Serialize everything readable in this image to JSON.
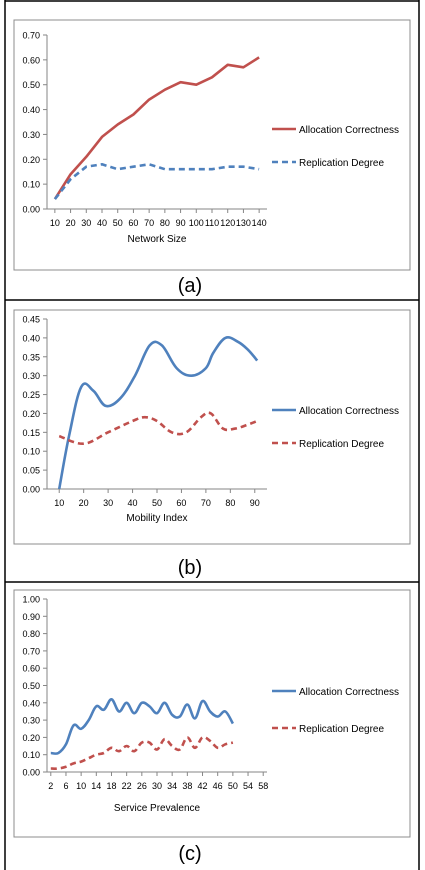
{
  "chart_data": [
    {
      "type": "line",
      "caption": "(a)",
      "xlabel": "Network Size",
      "categories": [
        "10",
        "20",
        "30",
        "40",
        "50",
        "60",
        "70",
        "80",
        "90",
        "100",
        "110",
        "120",
        "130",
        "140"
      ],
      "y_ticks": [
        "0.00",
        "0.10",
        "0.20",
        "0.30",
        "0.40",
        "0.50",
        "0.60",
        "0.70"
      ],
      "ylim": [
        0,
        0.7
      ],
      "smooth": false,
      "grid": false,
      "legend_position": "right",
      "series": [
        {
          "name": "Allocation Correctness",
          "color": "#c0504d",
          "dash": "solid",
          "values": [
            0.04,
            0.14,
            0.21,
            0.29,
            0.34,
            0.38,
            0.44,
            0.48,
            0.51,
            0.5,
            0.53,
            0.58,
            0.57,
            0.61
          ]
        },
        {
          "name": "Replication Degree",
          "color": "#4f81bd",
          "dash": "dashed",
          "values": [
            0.04,
            0.12,
            0.17,
            0.18,
            0.16,
            0.17,
            0.18,
            0.16,
            0.16,
            0.16,
            0.16,
            0.17,
            0.17,
            0.16
          ]
        }
      ]
    },
    {
      "type": "line",
      "caption": "(b)",
      "xlabel": "Mobility Index",
      "categories": [
        "10",
        "20",
        "30",
        "40",
        "50",
        "60",
        "70",
        "80",
        "90"
      ],
      "y_ticks": [
        "0.00",
        "0.05",
        "0.10",
        "0.15",
        "0.20",
        "0.25",
        "0.30",
        "0.35",
        "0.40",
        "0.45"
      ],
      "ylim": [
        0,
        0.45
      ],
      "smooth": true,
      "grid": false,
      "legend_position": "right",
      "series": [
        {
          "name": "Allocation Correctness",
          "color": "#4f81bd",
          "dash": "solid",
          "x": [
            10,
            14,
            19,
            24,
            29,
            35,
            41,
            47,
            52,
            58,
            64,
            70,
            73,
            78,
            83,
            87,
            91
          ],
          "values": [
            0.0,
            0.14,
            0.27,
            0.26,
            0.22,
            0.24,
            0.3,
            0.38,
            0.38,
            0.32,
            0.3,
            0.32,
            0.36,
            0.4,
            0.39,
            0.37,
            0.34
          ]
        },
        {
          "name": "Replication Degree",
          "color": "#c0504d",
          "dash": "dashed",
          "x": [
            10,
            20,
            30,
            40,
            45,
            50,
            56,
            62,
            68,
            72,
            77,
            82,
            87,
            91
          ],
          "values": [
            0.14,
            0.12,
            0.15,
            0.18,
            0.19,
            0.18,
            0.15,
            0.15,
            0.19,
            0.2,
            0.16,
            0.16,
            0.17,
            0.18
          ]
        }
      ]
    },
    {
      "type": "line",
      "caption": "(c)",
      "xlabel": "Service Prevalence",
      "categories": [
        "2",
        "6",
        "10",
        "14",
        "18",
        "22",
        "26",
        "30",
        "34",
        "38",
        "42",
        "46",
        "50",
        "54",
        "58"
      ],
      "y_ticks": [
        "0.00",
        "0.10",
        "0.20",
        "0.30",
        "0.40",
        "0.50",
        "0.60",
        "0.70",
        "0.80",
        "0.90",
        "1.00"
      ],
      "ylim": [
        0,
        1.0
      ],
      "smooth": true,
      "grid": false,
      "legend_position": "right",
      "series": [
        {
          "name": "Allocation Correctness",
          "color": "#4f81bd",
          "dash": "solid",
          "x": [
            2,
            4,
            6,
            8,
            10,
            12,
            14,
            16,
            18,
            20,
            22,
            24,
            26,
            28,
            30,
            32,
            34,
            36,
            38,
            40,
            42,
            44,
            46,
            48,
            50
          ],
          "values": [
            0.11,
            0.11,
            0.16,
            0.27,
            0.25,
            0.3,
            0.38,
            0.36,
            0.42,
            0.35,
            0.4,
            0.34,
            0.4,
            0.38,
            0.34,
            0.4,
            0.33,
            0.32,
            0.39,
            0.31,
            0.41,
            0.35,
            0.32,
            0.35,
            0.28
          ]
        },
        {
          "name": "Replication Degree",
          "color": "#c0504d",
          "dash": "dashed",
          "x": [
            2,
            4,
            6,
            8,
            10,
            12,
            14,
            16,
            18,
            20,
            22,
            24,
            26,
            28,
            30,
            32,
            34,
            36,
            38,
            40,
            42,
            44,
            46,
            48,
            50
          ],
          "values": [
            0.02,
            0.02,
            0.03,
            0.05,
            0.06,
            0.08,
            0.1,
            0.11,
            0.14,
            0.12,
            0.15,
            0.12,
            0.17,
            0.17,
            0.13,
            0.19,
            0.15,
            0.13,
            0.2,
            0.14,
            0.2,
            0.18,
            0.14,
            0.16,
            0.17
          ]
        }
      ]
    }
  ]
}
